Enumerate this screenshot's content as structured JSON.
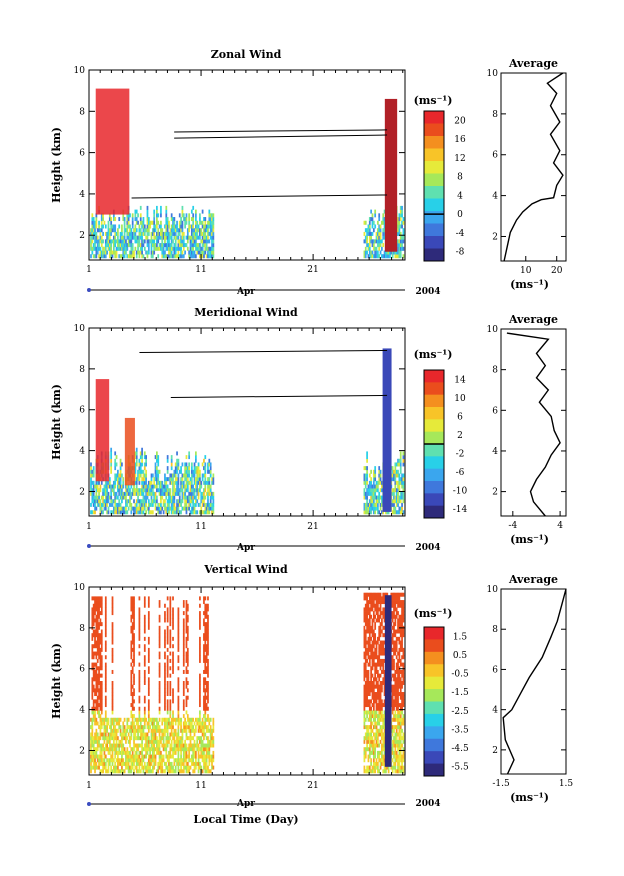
{
  "chart_data": [
    {
      "type": "heatmap",
      "title": "Zonal Wind",
      "ylabel": "Height (km)",
      "ylim": [
        0.8,
        10
      ],
      "yticks": [
        2,
        4,
        6,
        8,
        10
      ],
      "xticks": [
        "1",
        "11",
        "21"
      ],
      "month_label": "Apr",
      "year_label": "2004",
      "colorbar": {
        "unit": "(ms⁻¹)",
        "ticks": [
          "20",
          "16",
          "12",
          "8",
          "4",
          "0",
          "-4",
          "-8"
        ],
        "marker_value": "0"
      },
      "average": {
        "title": "Average",
        "xlim": [
          2,
          23
        ],
        "xticks": [
          "10",
          "20"
        ],
        "xunit": "(ms⁻¹)",
        "profile": [
          [
            3,
            0.8
          ],
          [
            4,
            1.5
          ],
          [
            5,
            2.2
          ],
          [
            7,
            2.8
          ],
          [
            9,
            3.2
          ],
          [
            12,
            3.6
          ],
          [
            15,
            3.8
          ],
          [
            19,
            3.9
          ],
          [
            20,
            4.5
          ],
          [
            22,
            5.0
          ],
          [
            19,
            5.6
          ],
          [
            21,
            6.2
          ],
          [
            18,
            7.0
          ],
          [
            21,
            7.6
          ],
          [
            18,
            8.4
          ],
          [
            20,
            9.0
          ],
          [
            17,
            9.5
          ],
          [
            22,
            10
          ]
        ]
      }
    },
    {
      "type": "heatmap",
      "title": "Meridional Wind",
      "ylabel": "Height (km)",
      "ylim": [
        0.8,
        10
      ],
      "yticks": [
        2,
        4,
        6,
        8,
        10
      ],
      "xticks": [
        "1",
        "11",
        "21"
      ],
      "month_label": "Apr",
      "year_label": "2004",
      "colorbar": {
        "unit": "(ms⁻¹)",
        "ticks": [
          "14",
          "10",
          "6",
          "2",
          "-2",
          "-6",
          "-10",
          "-14"
        ],
        "marker_value": "0"
      },
      "average": {
        "title": "Average",
        "xlim": [
          -6,
          5
        ],
        "xticks": [
          "-4",
          "4"
        ],
        "xunit": "(ms⁻¹)",
        "profile": [
          [
            1.5,
            0.8
          ],
          [
            -0.5,
            1.5
          ],
          [
            -1,
            2.0
          ],
          [
            0,
            2.6
          ],
          [
            1.5,
            3.2
          ],
          [
            2.5,
            3.8
          ],
          [
            4,
            4.4
          ],
          [
            3,
            5.0
          ],
          [
            2.5,
            5.7
          ],
          [
            0.5,
            6.4
          ],
          [
            2,
            7.0
          ],
          [
            0,
            7.6
          ],
          [
            1.5,
            8.2
          ],
          [
            0,
            8.8
          ],
          [
            2,
            9.5
          ],
          [
            -5,
            9.8
          ]
        ]
      }
    },
    {
      "type": "heatmap",
      "title": "Vertical Wind",
      "ylabel": "Height (km)",
      "xlabel": "Local Time (Day)",
      "ylim": [
        0.8,
        10
      ],
      "yticks": [
        2,
        4,
        6,
        8,
        10
      ],
      "xticks": [
        "1",
        "11",
        "21"
      ],
      "month_label": "Apr",
      "year_label": "2004",
      "colorbar": {
        "unit": "(ms⁻¹)",
        "ticks": [
          "1.5",
          "0.5",
          "-0.5",
          "-1.5",
          "-2.5",
          "-3.5",
          "-4.5",
          "-5.5"
        ],
        "marker_value": ""
      },
      "average": {
        "title": "Average",
        "xlim": [
          -1.5,
          1.5
        ],
        "xticks": [
          "-1.5",
          "1.5"
        ],
        "xunit": "(ms⁻¹)",
        "profile": [
          [
            -1.2,
            0.8
          ],
          [
            -0.9,
            1.5
          ],
          [
            -1.3,
            2.5
          ],
          [
            -1.4,
            3.6
          ],
          [
            -1.0,
            4.0
          ],
          [
            -0.6,
            4.8
          ],
          [
            -0.2,
            5.6
          ],
          [
            0.4,
            6.6
          ],
          [
            0.8,
            7.6
          ],
          [
            1.1,
            8.4
          ],
          [
            1.3,
            9.2
          ],
          [
            1.5,
            10
          ]
        ]
      }
    }
  ]
}
